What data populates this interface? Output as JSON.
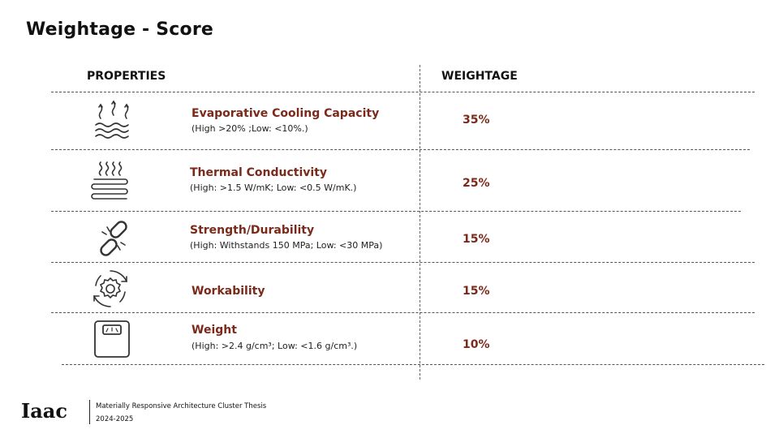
{
  "title": "Weightage - Score",
  "headers": {
    "properties": "PROPERTIES",
    "weightage": "WEIGHTAGE"
  },
  "rows": [
    {
      "name": "Evaporative Cooling Capacity",
      "desc": "(High >20% ;Low: <10%.)",
      "weight": "35%",
      "icon": "evaporation-waves-icon"
    },
    {
      "name": "Thermal Conductivity",
      "desc": "(High: >1.5 W/mK; Low: <0.5 W/mK.)",
      "weight": "25%",
      "icon": "heat-coil-icon"
    },
    {
      "name": "Strength/Durability",
      "desc": "(High: Withstands 150 MPa; Low: <30 MPa)",
      "weight": "15%",
      "icon": "broken-link-icon"
    },
    {
      "name": "Workability",
      "desc": "",
      "weight": "15%",
      "icon": "gear-cycle-icon"
    },
    {
      "name": "Weight",
      "desc": "(High: >2.4 g/cm³; Low: <1.6 g/cm³.)",
      "weight": "10%",
      "icon": "weighing-scale-icon"
    }
  ],
  "footer": {
    "logo": "Iaac",
    "line1": "Materially Responsive Architecture Cluster Thesis",
    "line2": "2024-2025"
  },
  "colors": {
    "accent": "#7a2a1a",
    "text": "#111111"
  }
}
